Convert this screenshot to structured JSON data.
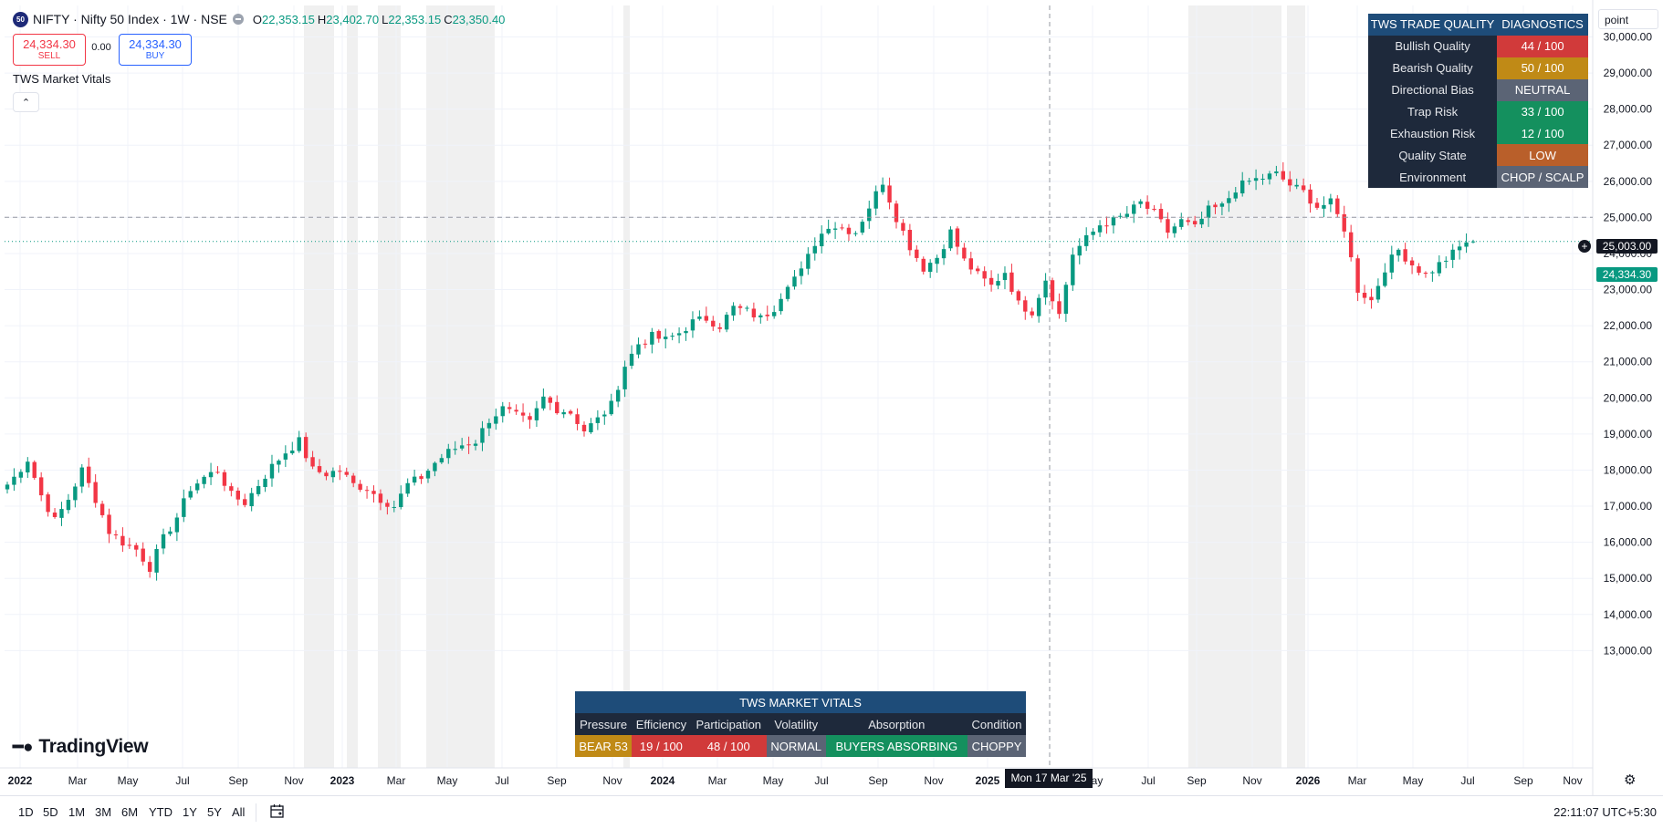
{
  "header": {
    "symbol_badge": "50",
    "title": "NIFTY · Nifty 50 Index · 1W · NSE",
    "ohlc": [
      {
        "k": "O",
        "v": "22,353.15"
      },
      {
        "k": "H",
        "v": "23,402.70"
      },
      {
        "k": "L",
        "v": "22,353.15"
      },
      {
        "k": "C",
        "v": "23,350.40"
      }
    ]
  },
  "trade": {
    "sell_price": "24,334.30",
    "sell_label": "SELL",
    "spread": "0.00",
    "buy_price": "24,334.30",
    "buy_label": "BUY"
  },
  "indicator": {
    "title": "TWS Market Vitals",
    "collapse_glyph": "⌃"
  },
  "scale_mode": "point",
  "crosshair": {
    "price_label": "25,003.00",
    "time_label": "Mon 17 Mar '25",
    "price": 25003
  },
  "last_price": {
    "label": "24,334.30",
    "price": 24334.3
  },
  "quality_table": {
    "header_left": "TWS TRADE QUALITY",
    "header_right": "DIAGNOSTICS",
    "rows": [
      {
        "label": "Bullish Quality",
        "value": "44 / 100",
        "color": "#d13a3a"
      },
      {
        "label": "Bearish Quality",
        "value": "50 / 100",
        "color": "#c08a16"
      },
      {
        "label": "Directional Bias",
        "value": "NEUTRAL",
        "color": "#5b6475"
      },
      {
        "label": "Trap Risk",
        "value": "33 / 100",
        "color": "#14905e"
      },
      {
        "label": "Exhaustion Risk",
        "value": "12 / 100",
        "color": "#14905e"
      },
      {
        "label": "Quality State",
        "value": "LOW",
        "color": "#b95f2a"
      },
      {
        "label": "Environment",
        "value": "CHOP / SCALP",
        "color": "#5b6475"
      }
    ]
  },
  "vitals_table": {
    "title": "TWS MARKET VITALS",
    "headers": [
      "Pressure",
      "Efficiency",
      "Participation",
      "Volatility",
      "Absorption",
      "Condition"
    ],
    "values": [
      {
        "text": "BEAR 53",
        "color": "#c08a16"
      },
      {
        "text": "19 / 100",
        "color": "#d13a3a"
      },
      {
        "text": "48 / 100",
        "color": "#d13a3a"
      },
      {
        "text": "NORMAL",
        "color": "#5b6475"
      },
      {
        "text": "BUYERS ABSORBING",
        "color": "#14905e"
      },
      {
        "text": "CHOPPY",
        "color": "#5b6475"
      }
    ]
  },
  "branding": {
    "name": "TradingView"
  },
  "bottom_bar": {
    "ranges": [
      "1D",
      "5D",
      "1M",
      "3M",
      "6M",
      "YTD",
      "1Y",
      "5Y",
      "All"
    ],
    "clock": "22:11:07 UTC+5:30"
  },
  "colors": {
    "up": "#089981",
    "down": "#f23645",
    "grid": "#f0f3fa",
    "session_band": "#f0f0f0"
  },
  "chart_data": {
    "type": "candlestick",
    "timeframe": "1W",
    "symbol": "NIFTY",
    "ylim": [
      12700,
      30500
    ],
    "y_ticks": [
      "13,000.00",
      "14,000.00",
      "15,000.00",
      "16,000.00",
      "17,000.00",
      "18,000.00",
      "19,000.00",
      "20,000.00",
      "21,000.00",
      "22,000.00",
      "23,000.00",
      "24,000.00",
      "25,000.00",
      "26,000.00",
      "27,000.00",
      "28,000.00",
      "29,000.00",
      "30,000.00"
    ],
    "x_ticks": [
      "2022",
      "Mar",
      "May",
      "Jul",
      "Sep",
      "Nov",
      "2023",
      "Mar",
      "May",
      "Jul",
      "Sep",
      "Nov",
      "2024",
      "Mar",
      "May",
      "Jul",
      "Sep",
      "Nov",
      "2025",
      "May",
      "Jul",
      "Sep",
      "Nov",
      "2026",
      "Mar",
      "May",
      "Jul",
      "Sep",
      "Nov"
    ],
    "grid": true,
    "weekly_close_path": [
      [
        "2022-01",
        17400
      ],
      [
        "2022-01",
        17800
      ],
      [
        "2022-02",
        18300
      ],
      [
        "2022-02",
        17300
      ],
      [
        "2022-03",
        16600
      ],
      [
        "2022-03",
        17200
      ],
      [
        "2022-04",
        18000
      ],
      [
        "2022-04",
        17200
      ],
      [
        "2022-05",
        16300
      ],
      [
        "2022-05",
        16000
      ],
      [
        "2022-06",
        15800
      ],
      [
        "2022-06",
        15300
      ],
      [
        "2022-07",
        16100
      ],
      [
        "2022-07",
        16700
      ],
      [
        "2022-08",
        17500
      ],
      [
        "2022-08",
        17800
      ],
      [
        "2022-09",
        18000
      ],
      [
        "2022-09",
        17300
      ],
      [
        "2022-10",
        17100
      ],
      [
        "2022-10",
        17600
      ],
      [
        "2022-11",
        18100
      ],
      [
        "2022-11",
        18500
      ],
      [
        "2022-12",
        18800
      ],
      [
        "2022-12",
        18000
      ],
      [
        "2023-01",
        17900
      ],
      [
        "2023-01",
        18000
      ],
      [
        "2023-02",
        17600
      ],
      [
        "2023-02",
        17500
      ],
      [
        "2023-03",
        17200
      ],
      [
        "2023-03",
        17000
      ],
      [
        "2023-04",
        17600
      ],
      [
        "2023-04",
        17800
      ],
      [
        "2023-05",
        18200
      ],
      [
        "2023-05",
        18500
      ],
      [
        "2023-06",
        18700
      ],
      [
        "2023-06",
        18800
      ],
      [
        "2023-07",
        19400
      ],
      [
        "2023-07",
        19700
      ],
      [
        "2023-08",
        19500
      ],
      [
        "2023-08",
        19300
      ],
      [
        "2023-09",
        20000
      ],
      [
        "2023-09",
        19700
      ],
      [
        "2023-10",
        19600
      ],
      [
        "2023-10",
        19100
      ],
      [
        "2023-11",
        19400
      ],
      [
        "2023-11",
        19800
      ],
      [
        "2023-12",
        20900
      ],
      [
        "2023-12",
        21500
      ],
      [
        "2024-01",
        21700
      ],
      [
        "2024-01",
        21600
      ],
      [
        "2024-02",
        21800
      ],
      [
        "2024-02",
        22100
      ],
      [
        "2024-03",
        22200
      ],
      [
        "2024-03",
        22000
      ],
      [
        "2024-04",
        22500
      ],
      [
        "2024-04",
        22400
      ],
      [
        "2024-05",
        22200
      ],
      [
        "2024-05",
        22500
      ],
      [
        "2024-06",
        23200
      ],
      [
        "2024-06",
        23500
      ],
      [
        "2024-07",
        24300
      ],
      [
        "2024-07",
        24800
      ],
      [
        "2024-08",
        24700
      ],
      [
        "2024-08",
        24600
      ],
      [
        "2024-09",
        25300
      ],
      [
        "2024-09",
        26000
      ],
      [
        "2024-10",
        25000
      ],
      [
        "2024-10",
        24200
      ],
      [
        "2024-11",
        23600
      ],
      [
        "2024-11",
        23900
      ],
      [
        "2024-12",
        24600
      ],
      [
        "2024-12",
        23800
      ],
      [
        "2025-01",
        23400
      ],
      [
        "2025-01",
        23100
      ],
      [
        "2025-02",
        23500
      ],
      [
        "2025-02",
        22600
      ],
      [
        "2025-03",
        22400
      ],
      [
        "2025-03",
        23300
      ],
      [
        "2025-04",
        22300
      ],
      [
        "2025-04",
        24000
      ],
      [
        "2025-05",
        24400
      ],
      [
        "2025-05",
        24800
      ],
      [
        "2025-06",
        24900
      ],
      [
        "2025-06",
        25100
      ],
      [
        "2025-07",
        25400
      ],
      [
        "2025-07",
        25100
      ],
      [
        "2025-08",
        24600
      ],
      [
        "2025-08",
        24900
      ],
      [
        "2025-09",
        24700
      ],
      [
        "2025-09",
        25200
      ],
      [
        "2025-10",
        25300
      ],
      [
        "2025-10",
        25800
      ],
      [
        "2025-11",
        26000
      ],
      [
        "2025-11",
        26100
      ],
      [
        "2025-12",
        26200
      ],
      [
        "2025-12",
        25900
      ],
      [
        "2026-01",
        25700
      ],
      [
        "2026-01",
        25300
      ],
      [
        "2026-02",
        25400
      ],
      [
        "2026-02",
        24700
      ],
      [
        "2026-03",
        23000
      ],
      [
        "2026-03",
        22700
      ],
      [
        "2026-04",
        23600
      ],
      [
        "2026-04",
        24100
      ],
      [
        "2026-05",
        23700
      ],
      [
        "2026-05",
        23400
      ],
      [
        "2026-06",
        23700
      ],
      [
        "2026-06",
        24000
      ],
      [
        "2026-07",
        24334.3
      ]
    ]
  }
}
